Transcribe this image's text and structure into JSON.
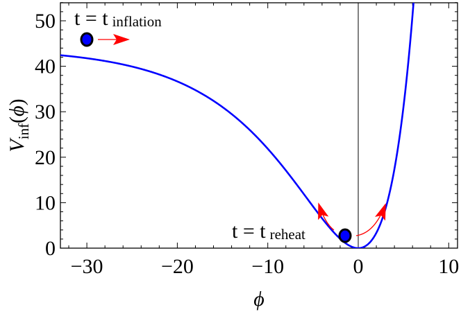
{
  "chart_data": {
    "type": "line",
    "title": "",
    "xlabel": "ϕ",
    "ylabel": {
      "main": "V",
      "sub": "inf",
      "arg": "(ϕ)"
    },
    "xlim": [
      -33,
      11
    ],
    "ylim": [
      0,
      54
    ],
    "x_ticks": [
      -30,
      -20,
      -10,
      0,
      10
    ],
    "x_tick_labels": [
      "−30",
      "−20",
      "−10",
      "0",
      "10"
    ],
    "y_ticks": [
      0,
      10,
      20,
      30,
      40,
      50
    ],
    "y_tick_labels": [
      "0",
      "10",
      "20",
      "30",
      "40",
      "50"
    ],
    "grid": false,
    "series": [
      {
        "name": "V_inf(ϕ)",
        "color": "#0000ff",
        "model": {
          "form": "V0*(1-exp(a*phi))^2",
          "V0": 44,
          "a": 0.122
        },
        "x": [
          -33,
          -30,
          -25,
          -20,
          -15,
          -10,
          -7.5,
          -5,
          -2.5,
          -1.5,
          0,
          2,
          4,
          5,
          6,
          6.3
        ],
        "y": [
          43.2,
          42.9,
          41.1,
          37.9,
          32.1,
          21.8,
          16.0,
          9.7,
          3.3,
          1.4,
          0,
          2.8,
          15.4,
          25.4,
          40.7,
          46.2
        ]
      }
    ],
    "vertical_line": {
      "x": 0,
      "color": "#000000"
    },
    "annotations": [
      {
        "id": "inflation",
        "text_main": "t = t",
        "text_sub": "inflation",
        "ball": {
          "x": -30,
          "y": 46
        },
        "arrow": {
          "direction": "right",
          "color": "#ff0000"
        }
      },
      {
        "id": "reheat",
        "text_main": "t = t",
        "text_sub": "reheat",
        "ball": {
          "x": -1.5,
          "y": 2.7
        },
        "arrows": [
          {
            "direction": "up-left",
            "color": "#ff0000"
          },
          {
            "direction": "up-right",
            "color": "#ff0000"
          }
        ]
      }
    ],
    "colors": {
      "curve": "#0000ff",
      "ball_fill": "#0000ff",
      "ball_stroke": "#000000",
      "arrow": "#ff0000"
    }
  },
  "labels": {
    "xlabel": "ϕ",
    "ylabel_main": "V",
    "ylabel_sub": "inf",
    "ylabel_arg": "(ϕ)",
    "annot_inflation_main": "t = t",
    "annot_inflation_sub": "inflation",
    "annot_reheat_main": "t = t",
    "annot_reheat_sub": "reheat"
  }
}
